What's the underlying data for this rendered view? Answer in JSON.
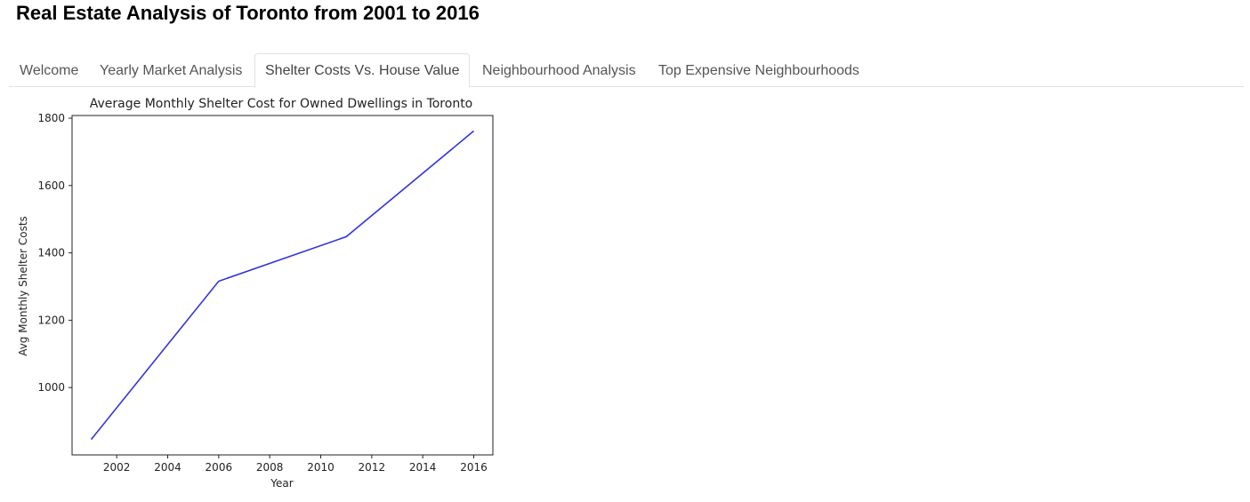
{
  "page": {
    "title": "Real Estate Analysis of Toronto from 2001 to 2016"
  },
  "tabs": [
    {
      "label": "Welcome",
      "active": false
    },
    {
      "label": "Yearly Market Analysis",
      "active": false
    },
    {
      "label": "Shelter Costs Vs. House Value",
      "active": true
    },
    {
      "label": "Neighbourhood Analysis",
      "active": false
    },
    {
      "label": "Top Expensive Neighbourhoods",
      "active": false
    }
  ],
  "chart_data": {
    "type": "line",
    "title": "Average Monthly Shelter Cost for Owned Dwellings in Toronto",
    "xlabel": "Year",
    "ylabel": "Avg Monthly Shelter Costs",
    "x": [
      2001,
      2006,
      2011,
      2016
    ],
    "series": [
      {
        "values": [
          846,
          1316,
          1448,
          1762
        ],
        "color": "#3333dd"
      }
    ],
    "xticks": [
      2002,
      2004,
      2006,
      2008,
      2010,
      2012,
      2014,
      2016
    ],
    "yticks": [
      1000,
      1200,
      1400,
      1600,
      1800
    ],
    "xlim": [
      2000.25,
      2016.75
    ],
    "ylim": [
      800,
      1808
    ],
    "grid": false
  }
}
